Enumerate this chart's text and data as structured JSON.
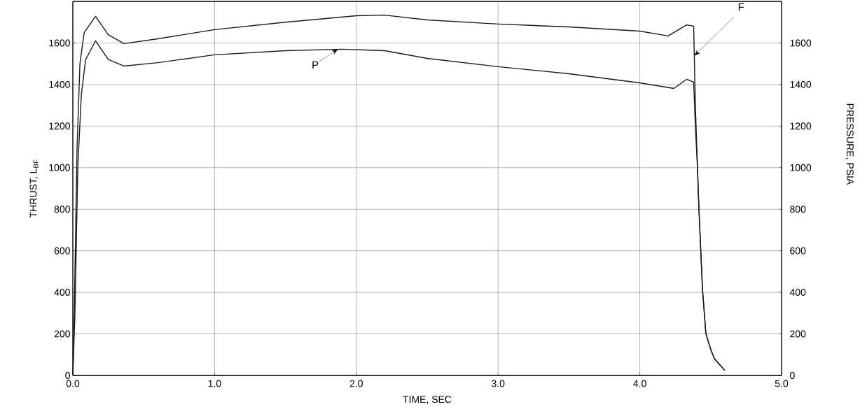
{
  "chart_data": {
    "type": "line",
    "xlabel": "TIME, SEC",
    "ylabel": "THRUST, L$_{BF}$",
    "y2label": "PRESSURE, PSIA",
    "xlim": [
      0,
      5
    ],
    "ylim": [
      0,
      1800
    ],
    "y2lim": [
      0,
      1800
    ],
    "xticks": [
      {
        "value": 0,
        "label": "0.0"
      },
      {
        "value": 1,
        "label": "1.0"
      },
      {
        "value": 2,
        "label": "2.0"
      },
      {
        "value": 3,
        "label": "3.0"
      },
      {
        "value": 4,
        "label": "4.0"
      },
      {
        "value": 5,
        "label": "5.0"
      }
    ],
    "yticks": [
      0,
      200,
      400,
      600,
      800,
      1000,
      1200,
      1400,
      1600
    ],
    "y2ticks": [
      0,
      200,
      400,
      600,
      800,
      1000,
      1200,
      1400,
      1600
    ],
    "grid": true,
    "marker": "none",
    "line_style": "solid",
    "series": [
      {
        "name": "F",
        "color": "#1a1a1a",
        "x": [
          0,
          0.01,
          0.03,
          0.05,
          0.08,
          0.16,
          0.25,
          0.36,
          0.6,
          1.0,
          1.5,
          2.0,
          2.2,
          2.5,
          3.0,
          3.5,
          4.0,
          4.2,
          4.33,
          4.38,
          4.392,
          4.407,
          4.417,
          4.442,
          4.466,
          4.501,
          4.526,
          4.6
        ],
        "values": [
          0,
          300,
          1100,
          1500,
          1650,
          1728,
          1640,
          1597,
          1620,
          1664,
          1700,
          1731,
          1734,
          1711,
          1691,
          1677,
          1657,
          1634,
          1687,
          1681,
          1300,
          998,
          803,
          417,
          202,
          124,
          81,
          24
        ]
      },
      {
        "name": "P",
        "color": "#1a1a1a",
        "axis": "y2",
        "x": [
          0,
          0.015,
          0.035,
          0.06,
          0.09,
          0.16,
          0.25,
          0.36,
          0.6,
          1.0,
          1.5,
          1.9,
          2.2,
          2.5,
          3.0,
          3.5,
          4.0,
          4.24,
          4.33,
          4.38,
          4.392,
          4.407,
          4.417,
          4.442,
          4.466,
          4.501,
          4.526,
          4.6
        ],
        "values": [
          0,
          300,
          1000,
          1350,
          1520,
          1610,
          1520,
          1489,
          1505,
          1543,
          1563,
          1570,
          1563,
          1526,
          1486,
          1452,
          1408,
          1381,
          1425,
          1412,
          1200,
          998,
          803,
          417,
          202,
          124,
          81,
          24
        ]
      }
    ],
    "legend": false
  }
}
